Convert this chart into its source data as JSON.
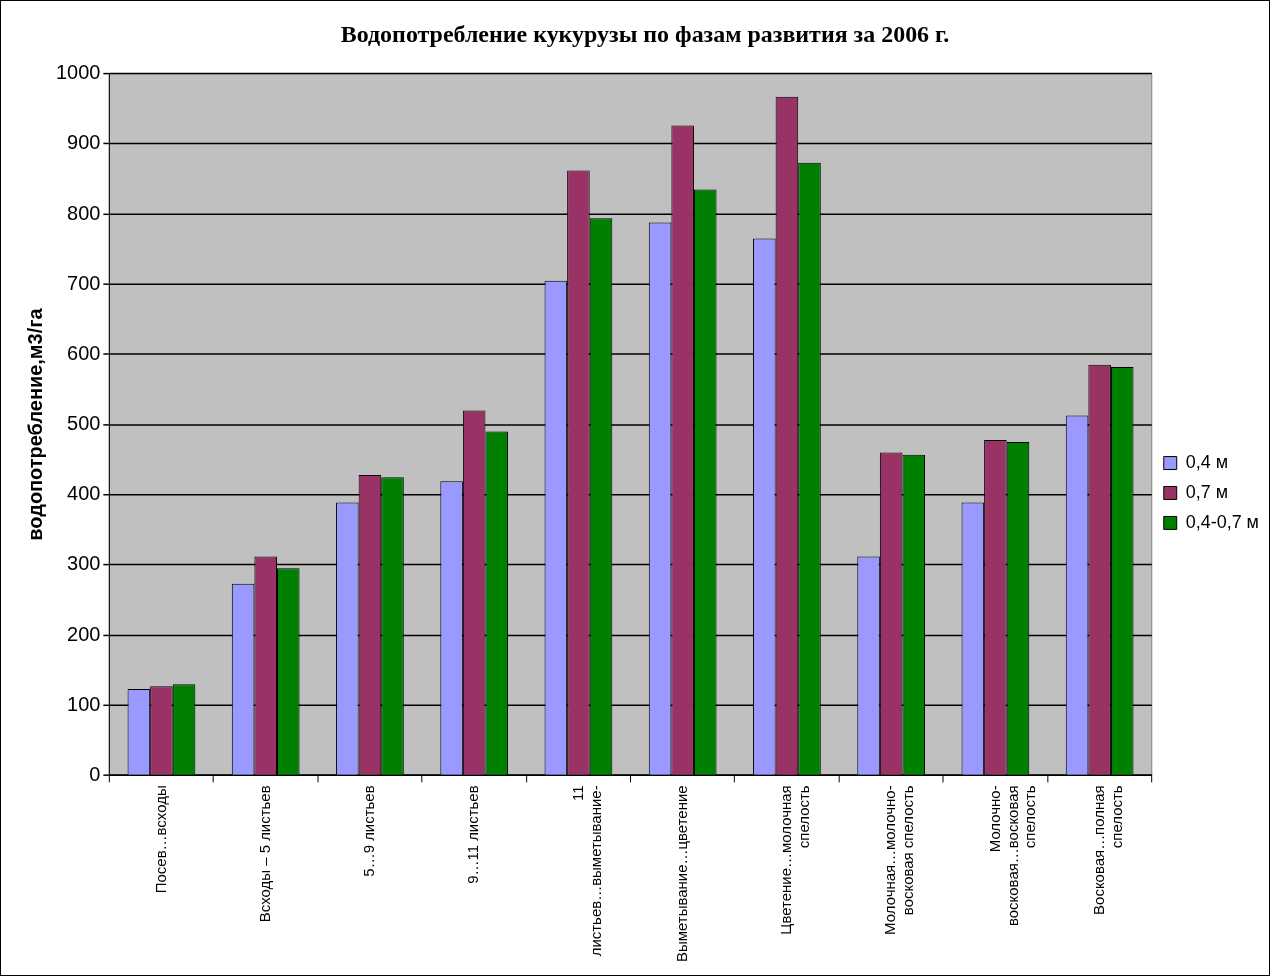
{
  "chart_data": {
    "type": "bar",
    "title": "Водопотребление кукурузы по фазам развития за 2006 г.",
    "ylabel": "водопотребление,м3/га",
    "categories": [
      "Посев…всходы",
      "Всходы – 5 листьев",
      "5…9 листьев",
      "9…11 листьев",
      "11 листьев…выметывание-",
      "Выметывание…цветение",
      "Цветение…молочная спелость",
      "Молочная…молочно-восковая спелость",
      "Молочно-восковая…восковая спелость",
      "Восковая…полная спелость"
    ],
    "series": [
      {
        "name": "0,4 м",
        "color": "#9999ff",
        "values": [
          123,
          273,
          389,
          419,
          705,
          788,
          765,
          312,
          389,
          513
        ]
      },
      {
        "name": "0,7 м",
        "color": "#993366",
        "values": [
          127,
          312,
          428,
          520,
          862,
          926,
          967,
          460,
          478,
          585
        ]
      },
      {
        "name": "0,4-0,7 м",
        "color": "#008000",
        "values": [
          130,
          295,
          425,
          490,
          794,
          835,
          873,
          457,
          475,
          582
        ]
      }
    ],
    "ylim": [
      0,
      1000
    ],
    "yticks": [
      0,
      100,
      200,
      300,
      400,
      500,
      600,
      700,
      800,
      900,
      1000
    ],
    "grid": "y",
    "legend": "right"
  }
}
